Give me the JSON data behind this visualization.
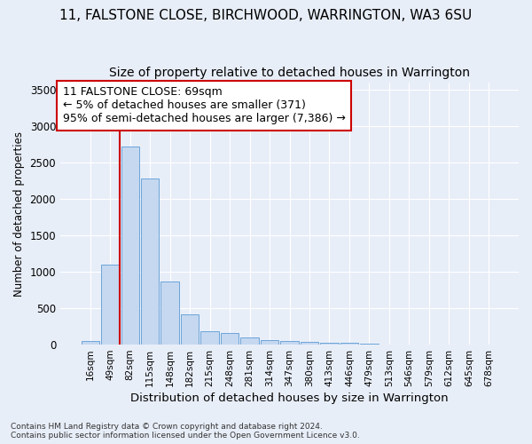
{
  "title_line1": "11, FALSTONE CLOSE, BIRCHWOOD, WARRINGTON, WA3 6SU",
  "title_line2": "Size of property relative to detached houses in Warrington",
  "xlabel": "Distribution of detached houses by size in Warrington",
  "ylabel": "Number of detached properties",
  "footer_line1": "Contains HM Land Registry data © Crown copyright and database right 2024.",
  "footer_line2": "Contains public sector information licensed under the Open Government Licence v3.0.",
  "categories": [
    "16sqm",
    "49sqm",
    "82sqm",
    "115sqm",
    "148sqm",
    "182sqm",
    "215sqm",
    "248sqm",
    "281sqm",
    "314sqm",
    "347sqm",
    "380sqm",
    "413sqm",
    "446sqm",
    "479sqm",
    "513sqm",
    "546sqm",
    "579sqm",
    "612sqm",
    "645sqm",
    "678sqm"
  ],
  "values": [
    55,
    1100,
    2720,
    2280,
    870,
    415,
    185,
    165,
    95,
    60,
    55,
    40,
    30,
    20,
    15,
    5,
    3,
    2,
    1,
    1,
    1
  ],
  "bar_color": "#c5d8f0",
  "bar_edgecolor": "#5b9bd5",
  "vline_x": 1.5,
  "vline_color": "#cc0000",
  "annotation_text": "11 FALSTONE CLOSE: 69sqm\n← 5% of detached houses are smaller (371)\n95% of semi-detached houses are larger (7,386) →",
  "annotation_box_color": "#ffffff",
  "annotation_box_edgecolor": "#cc0000",
  "ylim": [
    0,
    3600
  ],
  "yticks": [
    0,
    500,
    1000,
    1500,
    2000,
    2500,
    3000,
    3500
  ],
  "background_color": "#e8eef8",
  "grid_color": "#ffffff",
  "title_fontsize": 11,
  "subtitle_fontsize": 10,
  "annot_fontsize": 9
}
